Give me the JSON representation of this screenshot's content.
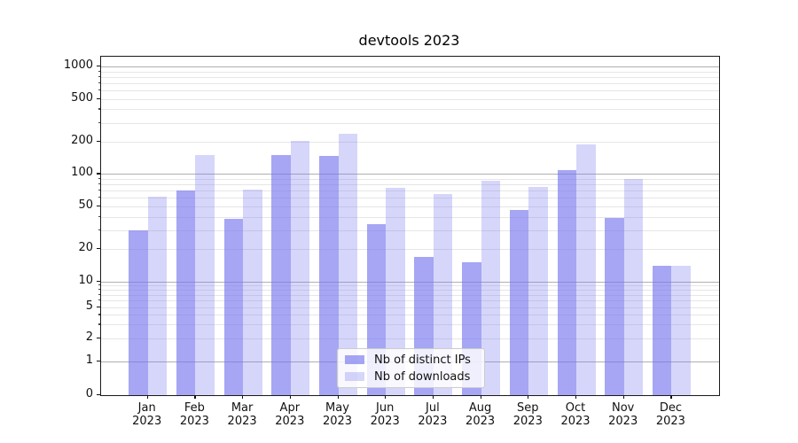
{
  "chart_data": {
    "type": "bar",
    "title": "devtools 2023",
    "categories": [
      "Jan 2023",
      "Feb 2023",
      "Mar 2023",
      "Apr 2023",
      "May 2023",
      "Jun 2023",
      "Jul 2023",
      "Aug 2023",
      "Sep 2023",
      "Oct 2023",
      "Nov 2023",
      "Dec 2023"
    ],
    "series": [
      {
        "name": "Nb of distinct IPs",
        "fill": "rgba(119,119,238,0.65)",
        "values": [
          30,
          70,
          38,
          150,
          148,
          34,
          17,
          15,
          46,
          109,
          39,
          14
        ]
      },
      {
        "name": "Nb of downloads",
        "fill": "rgba(119,119,238,0.30)",
        "values": [
          61,
          150,
          72,
          202,
          235,
          75,
          65,
          87,
          76,
          188,
          90,
          14
        ]
      }
    ],
    "xlabel": "",
    "ylabel": "",
    "yscale": "symlog",
    "yticks": [
      0,
      1,
      2,
      5,
      10,
      20,
      50,
      100,
      200,
      500,
      1000
    ],
    "ylim": [
      0,
      1200
    ],
    "grid": "horizontal, major and minor",
    "legend_position": "lower center",
    "colors": {
      "bar_base": "#7777ee",
      "grid_major": "#b0b0b0",
      "grid_minor": "#e6e6e6",
      "spine": "#1a1a1a"
    }
  }
}
